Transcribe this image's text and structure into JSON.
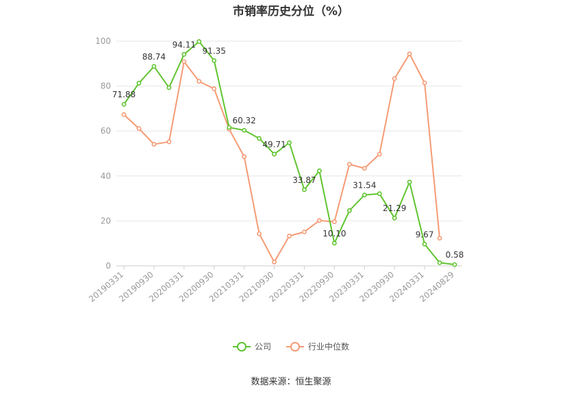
{
  "title": "市销率历史分位（%）",
  "source": "数据来源：恒生聚源",
  "chart_data": {
    "type": "line",
    "ylim": [
      0,
      100
    ],
    "yticks": [
      0,
      20,
      40,
      60,
      80,
      100
    ],
    "x_tick_labels": [
      "20190331",
      "20190930",
      "20200331",
      "20200930",
      "20210331",
      "20210930",
      "20220331",
      "20220930",
      "20230331",
      "20230930",
      "20240331",
      "20240829"
    ],
    "grid": true,
    "legend_position": "bottom",
    "series": [
      {
        "name": "公司",
        "color": "#5fc42f",
        "values": [
          71.88,
          81.3,
          88.74,
          79.3,
          94.11,
          99.8,
          91.35,
          61.6,
          60.32,
          56.7,
          49.71,
          54.8,
          33.87,
          42.3,
          10.1,
          24.6,
          31.54,
          32.1,
          21.29,
          37.3,
          9.67,
          1.4,
          0.58
        ],
        "labels": {
          "0": "71.88",
          "2": "88.74",
          "4": "94.11",
          "6": "91.35",
          "8": "60.32",
          "10": "49.71",
          "12": "33.87",
          "14": "10.10",
          "16": "31.54",
          "18": "21.29",
          "20": "9.67",
          "22": "0.58"
        }
      },
      {
        "name": "行业中位数",
        "color": "#f59a74",
        "values": [
          67.3,
          61.1,
          54.1,
          55.2,
          90.9,
          82.1,
          78.8,
          60.8,
          48.6,
          14.3,
          1.7,
          13.3,
          15.1,
          20.2,
          19.6,
          45.2,
          43.4,
          49.7,
          83.3,
          94.3,
          81.4,
          12.3,
          null
        ]
      }
    ]
  }
}
